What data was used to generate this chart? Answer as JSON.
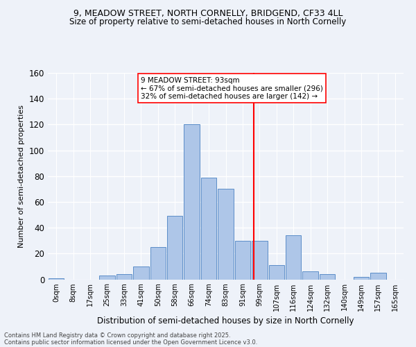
{
  "title1": "9, MEADOW STREET, NORTH CORNELLY, BRIDGEND, CF33 4LL",
  "title2": "Size of property relative to semi-detached houses in North Cornelly",
  "xlabel": "Distribution of semi-detached houses by size in North Cornelly",
  "ylabel": "Number of semi-detached properties",
  "bar_labels": [
    "0sqm",
    "8sqm",
    "17sqm",
    "25sqm",
    "33sqm",
    "41sqm",
    "50sqm",
    "58sqm",
    "66sqm",
    "74sqm",
    "83sqm",
    "91sqm",
    "99sqm",
    "107sqm",
    "116sqm",
    "124sqm",
    "132sqm",
    "140sqm",
    "149sqm",
    "157sqm",
    "165sqm"
  ],
  "bar_values": [
    1,
    0,
    0,
    3,
    4,
    10,
    25,
    49,
    120,
    79,
    70,
    30,
    30,
    11,
    34,
    6,
    4,
    0,
    2,
    5,
    0
  ],
  "bar_color": "#aec6e8",
  "bar_edge_color": "#5b8dc8",
  "ylim": [
    0,
    160
  ],
  "yticks": [
    0,
    20,
    40,
    60,
    80,
    100,
    120,
    140,
    160
  ],
  "property_label": "9 MEADOW STREET: 93sqm",
  "annotation_line1": "← 67% of semi-detached houses are smaller (296)",
  "annotation_line2": "32% of semi-detached houses are larger (142) →",
  "vline_x_index": 11.65,
  "footnote1": "Contains HM Land Registry data © Crown copyright and database right 2025.",
  "footnote2": "Contains public sector information licensed under the Open Government Licence v3.0.",
  "background_color": "#eef2f9"
}
